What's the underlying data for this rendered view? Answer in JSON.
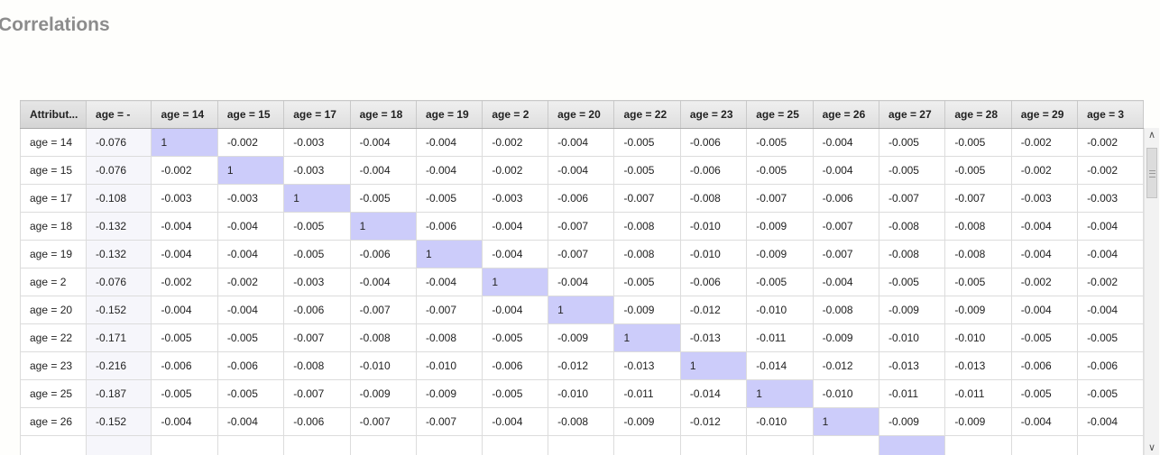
{
  "title": "Correlations",
  "columns": [
    "Attribut...",
    "age = -",
    "age = 14",
    "age = 15",
    "age = 17",
    "age = 18",
    "age = 19",
    "age = 2",
    "age = 20",
    "age = 22",
    "age = 23",
    "age = 25",
    "age = 26",
    "age = 27",
    "age = 28",
    "age = 29",
    "age = 3"
  ],
  "rows": [
    {
      "label": "age = 14",
      "values": [
        "-0.076",
        "1",
        "-0.002",
        "-0.003",
        "-0.004",
        "-0.004",
        "-0.002",
        "-0.004",
        "-0.005",
        "-0.006",
        "-0.005",
        "-0.004",
        "-0.005",
        "-0.005",
        "-0.002",
        "-0.002"
      ]
    },
    {
      "label": "age = 15",
      "values": [
        "-0.076",
        "-0.002",
        "1",
        "-0.003",
        "-0.004",
        "-0.004",
        "-0.002",
        "-0.004",
        "-0.005",
        "-0.006",
        "-0.005",
        "-0.004",
        "-0.005",
        "-0.005",
        "-0.002",
        "-0.002"
      ]
    },
    {
      "label": "age = 17",
      "values": [
        "-0.108",
        "-0.003",
        "-0.003",
        "1",
        "-0.005",
        "-0.005",
        "-0.003",
        "-0.006",
        "-0.007",
        "-0.008",
        "-0.007",
        "-0.006",
        "-0.007",
        "-0.007",
        "-0.003",
        "-0.003"
      ]
    },
    {
      "label": "age = 18",
      "values": [
        "-0.132",
        "-0.004",
        "-0.004",
        "-0.005",
        "1",
        "-0.006",
        "-0.004",
        "-0.007",
        "-0.008",
        "-0.010",
        "-0.009",
        "-0.007",
        "-0.008",
        "-0.008",
        "-0.004",
        "-0.004"
      ]
    },
    {
      "label": "age = 19",
      "values": [
        "-0.132",
        "-0.004",
        "-0.004",
        "-0.005",
        "-0.006",
        "1",
        "-0.004",
        "-0.007",
        "-0.008",
        "-0.010",
        "-0.009",
        "-0.007",
        "-0.008",
        "-0.008",
        "-0.004",
        "-0.004"
      ]
    },
    {
      "label": "age = 2",
      "values": [
        "-0.076",
        "-0.002",
        "-0.002",
        "-0.003",
        "-0.004",
        "-0.004",
        "1",
        "-0.004",
        "-0.005",
        "-0.006",
        "-0.005",
        "-0.004",
        "-0.005",
        "-0.005",
        "-0.002",
        "-0.002"
      ]
    },
    {
      "label": "age = 20",
      "values": [
        "-0.152",
        "-0.004",
        "-0.004",
        "-0.006",
        "-0.007",
        "-0.007",
        "-0.004",
        "1",
        "-0.009",
        "-0.012",
        "-0.010",
        "-0.008",
        "-0.009",
        "-0.009",
        "-0.004",
        "-0.004"
      ]
    },
    {
      "label": "age = 22",
      "values": [
        "-0.171",
        "-0.005",
        "-0.005",
        "-0.007",
        "-0.008",
        "-0.008",
        "-0.005",
        "-0.009",
        "1",
        "-0.013",
        "-0.011",
        "-0.009",
        "-0.010",
        "-0.010",
        "-0.005",
        "-0.005"
      ]
    },
    {
      "label": "age = 23",
      "values": [
        "-0.216",
        "-0.006",
        "-0.006",
        "-0.008",
        "-0.010",
        "-0.010",
        "-0.006",
        "-0.012",
        "-0.013",
        "1",
        "-0.014",
        "-0.012",
        "-0.013",
        "-0.013",
        "-0.006",
        "-0.006"
      ]
    },
    {
      "label": "age = 25",
      "values": [
        "-0.187",
        "-0.005",
        "-0.005",
        "-0.007",
        "-0.009",
        "-0.009",
        "-0.005",
        "-0.010",
        "-0.011",
        "-0.014",
        "1",
        "-0.010",
        "-0.011",
        "-0.011",
        "-0.005",
        "-0.005"
      ]
    },
    {
      "label": "age = 26",
      "values": [
        "-0.152",
        "-0.004",
        "-0.004",
        "-0.006",
        "-0.007",
        "-0.007",
        "-0.004",
        "-0.008",
        "-0.009",
        "-0.012",
        "-0.010",
        "1",
        "-0.009",
        "-0.009",
        "-0.004",
        "-0.004"
      ]
    },
    {
      "label": "",
      "values": [
        "",
        "",
        "",
        "",
        "",
        "",
        "",
        "",
        "",
        "",
        "",
        "",
        "",
        "",
        "",
        ""
      ]
    }
  ],
  "diagonal_color": "#ccccfa",
  "scrollbar": {
    "up_icon": "chevron-up-icon",
    "down_icon": "chevron-down-icon"
  }
}
